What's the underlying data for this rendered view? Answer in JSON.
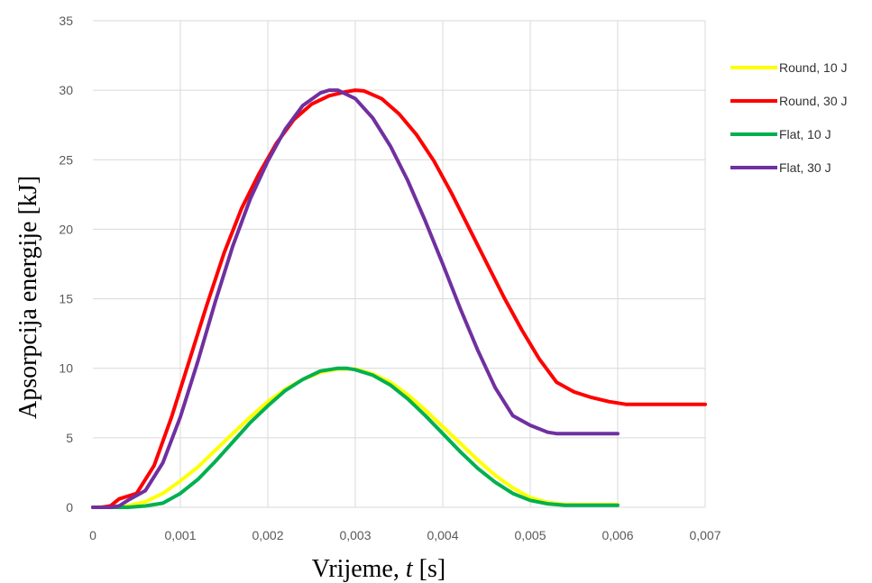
{
  "chart_data": {
    "type": "line",
    "xlabel_main": "Vrijeme, ",
    "xlabel_var": "t",
    "xlabel_unit": " [s]",
    "ylabel": "Apsorpcija energije [kJ]",
    "xlim": [
      0,
      0.007
    ],
    "ylim": [
      0,
      35
    ],
    "x_ticks": [
      0,
      0.001,
      0.002,
      0.003,
      0.004,
      0.005,
      0.006,
      0.007
    ],
    "x_tick_labels": [
      "0",
      "0,001",
      "0,002",
      "0,003",
      "0,004",
      "0,005",
      "0,006",
      "0,007"
    ],
    "y_ticks": [
      0,
      5,
      10,
      15,
      20,
      25,
      30,
      35
    ],
    "y_tick_labels": [
      "0",
      "5",
      "10",
      "15",
      "20",
      "25",
      "30",
      "35"
    ],
    "grid": true,
    "legend_position": "right",
    "series": [
      {
        "name": "Round, 10 J",
        "color": "#ffff00",
        "x": [
          0,
          0.0004,
          0.0006,
          0.0008,
          0.001,
          0.0012,
          0.0014,
          0.0016,
          0.0018,
          0.002,
          0.0022,
          0.0024,
          0.0026,
          0.0028,
          0.003,
          0.0032,
          0.0034,
          0.0036,
          0.0038,
          0.004,
          0.0042,
          0.0044,
          0.0046,
          0.0048,
          0.005,
          0.0052,
          0.0054,
          0.0056,
          0.0058,
          0.006
        ],
        "y": [
          0,
          0.1,
          0.4,
          1.0,
          1.9,
          2.9,
          4.1,
          5.3,
          6.5,
          7.6,
          8.5,
          9.2,
          9.7,
          9.95,
          9.95,
          9.6,
          9.0,
          8.1,
          7.0,
          5.8,
          4.6,
          3.4,
          2.3,
          1.4,
          0.7,
          0.35,
          0.2,
          0.2,
          0.2,
          0.2
        ]
      },
      {
        "name": "Round, 30 J",
        "color": "#ff0000",
        "x": [
          0,
          0.0001,
          0.0002,
          0.0003,
          0.0005,
          0.0007,
          0.0009,
          0.0011,
          0.0013,
          0.0015,
          0.0017,
          0.0019,
          0.0021,
          0.0023,
          0.0025,
          0.0027,
          0.0029,
          0.003,
          0.0031,
          0.0033,
          0.0035,
          0.0037,
          0.0039,
          0.0041,
          0.0043,
          0.0045,
          0.0047,
          0.0049,
          0.0051,
          0.0053,
          0.0055,
          0.0057,
          0.0059,
          0.0061,
          0.0062,
          0.0065,
          0.007
        ],
        "y": [
          0,
          0,
          0.1,
          0.6,
          1.0,
          3.0,
          6.5,
          10.5,
          14.5,
          18.3,
          21.5,
          24.0,
          26.2,
          27.9,
          29.0,
          29.6,
          29.9,
          30.0,
          29.95,
          29.4,
          28.3,
          26.8,
          24.9,
          22.6,
          20.1,
          17.6,
          15.1,
          12.8,
          10.7,
          9.0,
          8.3,
          7.9,
          7.6,
          7.4,
          7.4,
          7.4,
          7.4
        ]
      },
      {
        "name": "Flat, 10 J",
        "color": "#00b050",
        "x": [
          0,
          0.0004,
          0.0006,
          0.0008,
          0.001,
          0.0012,
          0.0014,
          0.0016,
          0.0018,
          0.002,
          0.0022,
          0.0024,
          0.0026,
          0.0028,
          0.0029,
          0.003,
          0.0032,
          0.0034,
          0.0036,
          0.0038,
          0.004,
          0.0042,
          0.0044,
          0.0046,
          0.0048,
          0.005,
          0.0052,
          0.0054,
          0.0056,
          0.0058,
          0.006
        ],
        "y": [
          0,
          0,
          0.1,
          0.3,
          1.0,
          2.0,
          3.3,
          4.7,
          6.1,
          7.3,
          8.4,
          9.2,
          9.8,
          10.0,
          10.0,
          9.9,
          9.5,
          8.8,
          7.8,
          6.6,
          5.3,
          4.0,
          2.8,
          1.8,
          1.0,
          0.5,
          0.25,
          0.15,
          0.15,
          0.15,
          0.15
        ]
      },
      {
        "name": "Flat, 30 J",
        "color": "#7030a0",
        "x": [
          0,
          0.0002,
          0.0003,
          0.0004,
          0.0006,
          0.0008,
          0.001,
          0.0012,
          0.0014,
          0.0016,
          0.0018,
          0.002,
          0.0022,
          0.0024,
          0.0026,
          0.0027,
          0.0028,
          0.003,
          0.0032,
          0.0034,
          0.0036,
          0.0038,
          0.004,
          0.0042,
          0.0044,
          0.0046,
          0.0048,
          0.005,
          0.0052,
          0.0053,
          0.0055,
          0.006
        ],
        "y": [
          0,
          0,
          0.1,
          0.5,
          1.2,
          3.2,
          6.5,
          10.5,
          14.8,
          18.8,
          22.2,
          24.9,
          27.2,
          28.9,
          29.8,
          30.0,
          30.0,
          29.4,
          28.0,
          26.0,
          23.5,
          20.6,
          17.5,
          14.3,
          11.3,
          8.6,
          6.6,
          5.9,
          5.4,
          5.3,
          5.3,
          5.3
        ]
      }
    ]
  }
}
